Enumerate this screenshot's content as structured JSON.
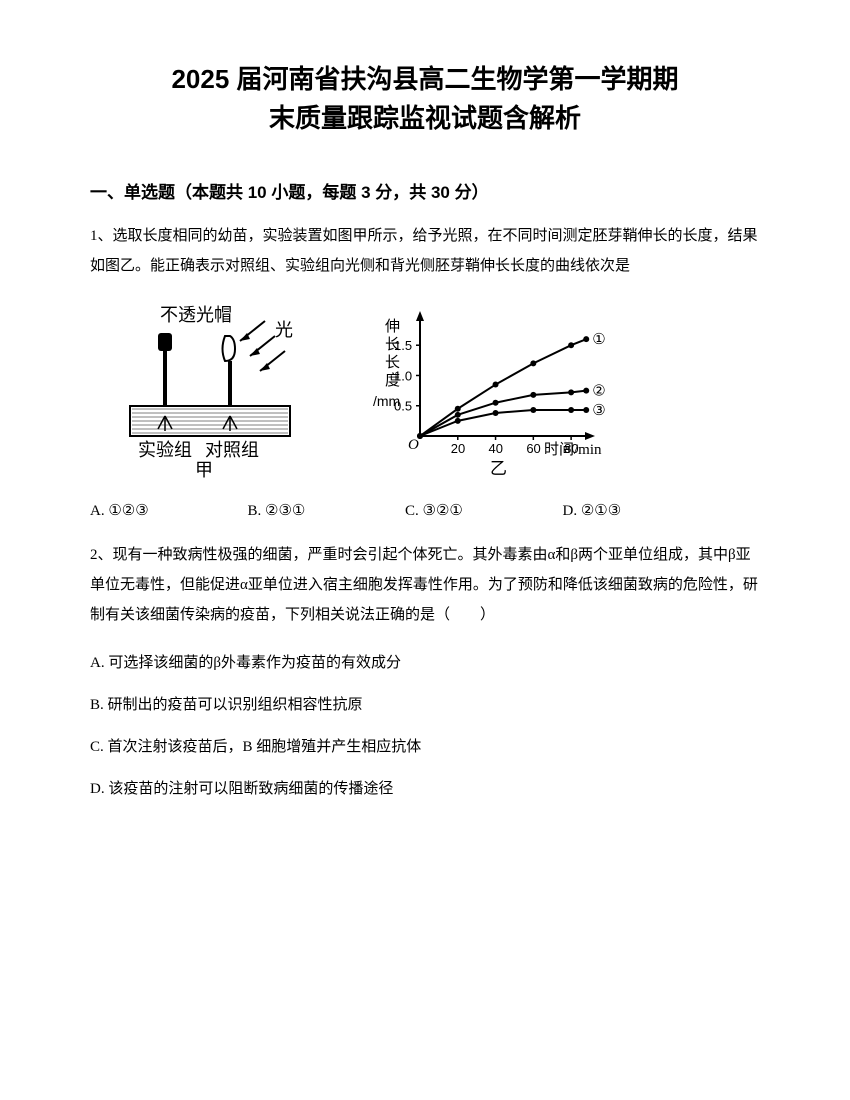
{
  "title_line1": "2025 届河南省扶沟县高二生物学第一学期期",
  "title_line2": "末质量跟踪监视试题含解析",
  "section_header": "一、单选题（本题共 10 小题，每题 3 分，共 30 分）",
  "q1": {
    "text": "1、选取长度相同的幼苗，实验装置如图甲所示，给予光照，在不同时间测定胚芽鞘伸长的长度，结果如图乙。能正确表示对照组、实验组向光侧和背光侧胚芽鞘伸长长度的曲线依次是",
    "figure_left": {
      "cap_label": "不透光帽",
      "light_label": "光",
      "left_label": "实验组",
      "right_label": "对照组",
      "caption": "甲"
    },
    "chart": {
      "ylabel": "伸长长度/mm",
      "xlabel": "时间/min",
      "caption": "乙",
      "origin": "O",
      "y_ticks": [
        "0.5",
        "1.0",
        "1.5"
      ],
      "y_tick_positions": [
        0.5,
        1.0,
        1.5
      ],
      "x_ticks": [
        "20",
        "40",
        "60",
        "80"
      ],
      "x_tick_positions": [
        20,
        40,
        60,
        80
      ],
      "x_max": 90,
      "y_max": 1.9,
      "curves": {
        "curve1": {
          "label": "①",
          "points": [
            [
              0,
              0
            ],
            [
              20,
              0.45
            ],
            [
              40,
              0.85
            ],
            [
              60,
              1.2
            ],
            [
              80,
              1.5
            ],
            [
              88,
              1.6
            ]
          ]
        },
        "curve2": {
          "label": "②",
          "points": [
            [
              0,
              0
            ],
            [
              20,
              0.35
            ],
            [
              40,
              0.55
            ],
            [
              60,
              0.68
            ],
            [
              80,
              0.72
            ],
            [
              88,
              0.75
            ]
          ]
        },
        "curve3": {
          "label": "③",
          "points": [
            [
              0,
              0
            ],
            [
              20,
              0.25
            ],
            [
              40,
              0.38
            ],
            [
              60,
              0.43
            ],
            [
              80,
              0.43
            ],
            [
              88,
              0.43
            ]
          ]
        }
      },
      "stroke_color": "#000000",
      "marker_size": 3
    },
    "options": {
      "A": "A. ①②③",
      "B": "B. ②③①",
      "C": "C. ③②①",
      "D": "D. ②①③"
    }
  },
  "q2": {
    "text": "2、现有一种致病性极强的细菌，严重时会引起个体死亡。其外毒素由α和β两个亚单位组成，其中β亚单位无毒性，但能促进α亚单位进入宿主细胞发挥毒性作用。为了预防和降低该细菌致病的危险性，研制有关该细菌传染病的疫苗，下列相关说法正确的是（　　）",
    "options": {
      "A": "A. 可选择该细菌的β外毒素作为疫苗的有效成分",
      "B": "B. 研制出的疫苗可以识别组织相容性抗原",
      "C": "C. 首次注射该疫苗后，B 细胞增殖并产生相应抗体",
      "D": "D. 该疫苗的注射可以阻断致病细菌的传播途径"
    }
  }
}
